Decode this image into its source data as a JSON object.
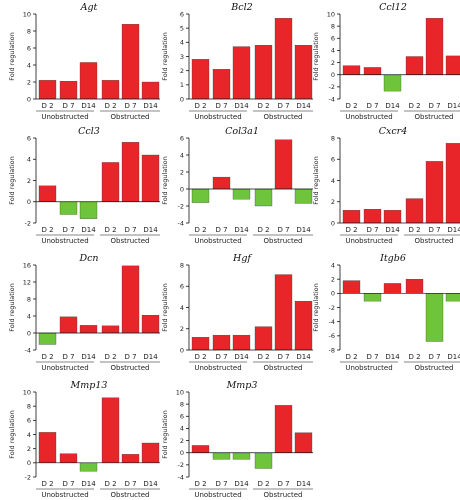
{
  "figure": {
    "colors": {
      "positive": "#e8262a",
      "negative": "#6ec43a"
    },
    "categories": [
      "D 2",
      "D 7",
      "D14",
      "D 2",
      "D 7",
      "D14"
    ],
    "groups": [
      "Unobstructed",
      "Obstructed"
    ],
    "ylabel": "Fold regulation"
  },
  "chart_data": [
    {
      "type": "bar",
      "title": "Agt",
      "ylim": [
        0,
        10
      ],
      "yticks": [
        0,
        2,
        4,
        6,
        8,
        10
      ],
      "values": [
        2.2,
        2.1,
        4.3,
        2.2,
        8.8,
        2.0
      ]
    },
    {
      "type": "bar",
      "title": "Bcl2",
      "ylim": [
        0,
        6
      ],
      "yticks": [
        0,
        1,
        2,
        3,
        4,
        5,
        6
      ],
      "values": [
        2.8,
        2.1,
        3.7,
        3.8,
        5.7,
        3.8
      ]
    },
    {
      "type": "bar",
      "title": "Ccl12",
      "ylim": [
        -4,
        10
      ],
      "yticks": [
        -4,
        -2,
        0,
        2,
        4,
        6,
        8,
        10
      ],
      "values": [
        1.5,
        1.2,
        -2.7,
        3.0,
        9.3,
        3.1
      ]
    },
    {
      "type": "bar",
      "title": "Ccl3",
      "ylim": [
        -2,
        6
      ],
      "yticks": [
        -2,
        0,
        2,
        4,
        6
      ],
      "values": [
        1.5,
        -1.2,
        -1.6,
        3.7,
        5.6,
        4.4
      ]
    },
    {
      "type": "bar",
      "title": "Col3a1",
      "ylim": [
        -4,
        6
      ],
      "yticks": [
        -4,
        -2,
        0,
        2,
        4,
        6
      ],
      "values": [
        -1.6,
        1.4,
        -1.2,
        -2.0,
        5.8,
        -1.7
      ]
    },
    {
      "type": "bar",
      "title": "Cxcr4",
      "ylim": [
        0,
        8
      ],
      "yticks": [
        0,
        2,
        4,
        6,
        8
      ],
      "values": [
        1.2,
        1.3,
        1.2,
        2.3,
        5.8,
        7.5
      ]
    },
    {
      "type": "bar",
      "title": "Dcn",
      "ylim": [
        -4,
        16
      ],
      "yticks": [
        -4,
        0,
        4,
        8,
        12,
        16
      ],
      "values": [
        -2.7,
        3.8,
        1.8,
        1.7,
        15.8,
        4.2
      ]
    },
    {
      "type": "bar",
      "title": "Hgf",
      "ylim": [
        0,
        8
      ],
      "yticks": [
        0,
        2,
        4,
        6,
        8
      ],
      "values": [
        1.2,
        1.4,
        1.4,
        2.2,
        7.1,
        4.6
      ]
    },
    {
      "type": "bar",
      "title": "Itgb6",
      "ylim": [
        -8,
        4
      ],
      "yticks": [
        -8,
        -6,
        -4,
        -2,
        0,
        2,
        4
      ],
      "values": [
        1.8,
        -1.1,
        1.4,
        2.0,
        -6.8,
        -1.1
      ]
    },
    {
      "type": "bar",
      "title": "Mmp13",
      "ylim": [
        -2,
        10
      ],
      "yticks": [
        -2,
        0,
        2,
        4,
        6,
        8,
        10
      ],
      "values": [
        4.3,
        1.3,
        -1.2,
        9.2,
        1.2,
        2.8
      ]
    },
    {
      "type": "bar",
      "title": "Mmp3",
      "ylim": [
        -4,
        10
      ],
      "yticks": [
        -4,
        -2,
        0,
        2,
        4,
        6,
        8,
        10
      ],
      "values": [
        1.2,
        -1.1,
        -1.1,
        -2.6,
        7.8,
        3.3
      ]
    }
  ]
}
